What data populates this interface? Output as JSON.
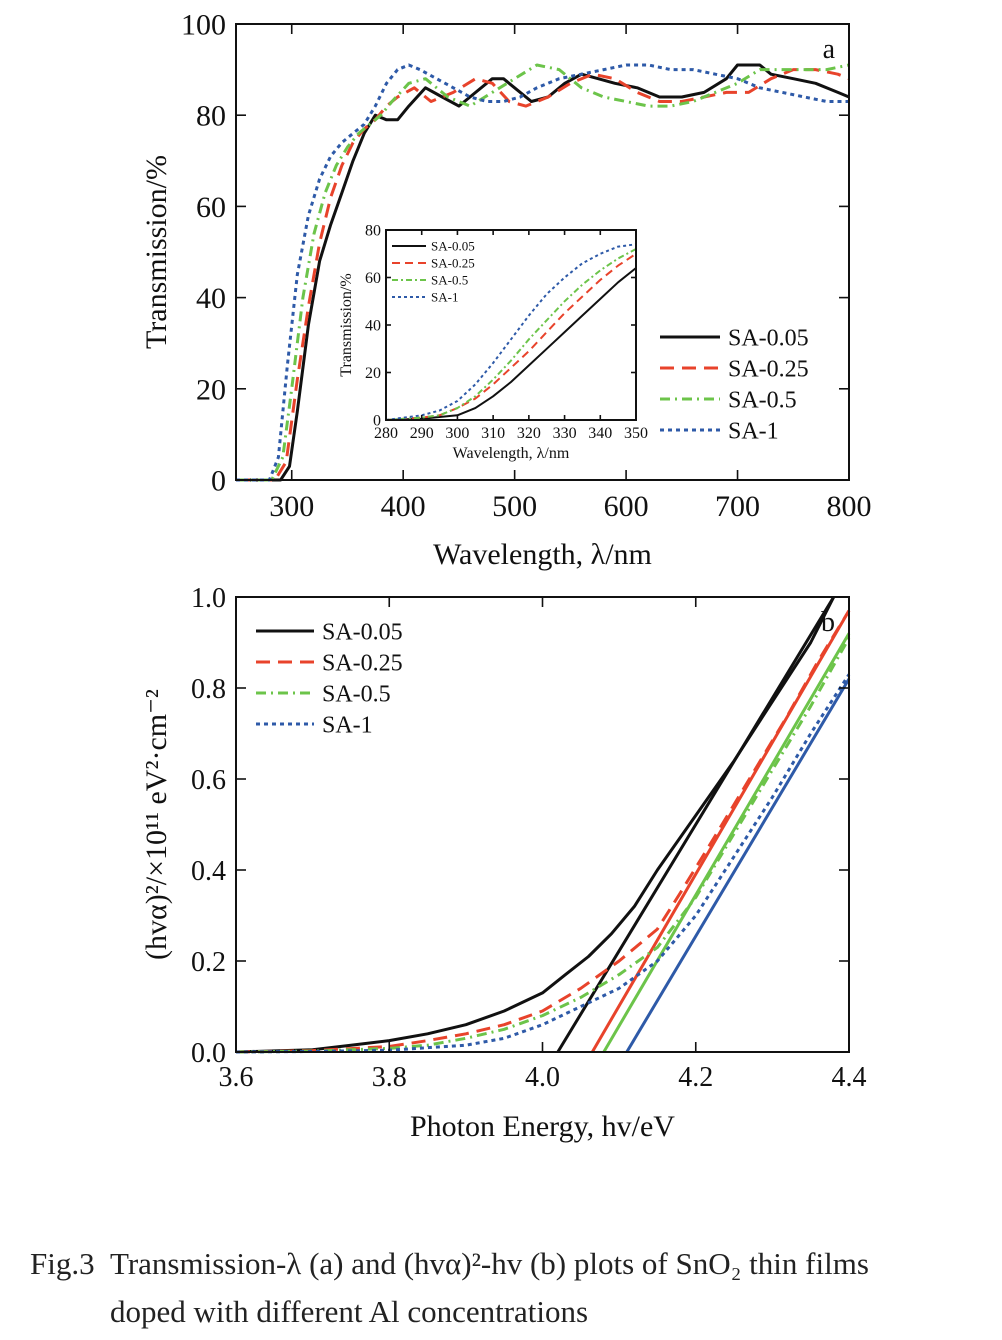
{
  "chart_data": [
    {
      "panel": "a",
      "type": "line",
      "xlabel": "Wavelength, λ/nm",
      "ylabel": "Transmission/%",
      "xlim": [
        250,
        800
      ],
      "ylim": [
        0,
        100
      ],
      "xticks": [
        300,
        400,
        500,
        600,
        700,
        800
      ],
      "yticks": [
        0,
        20,
        40,
        60,
        80,
        100
      ],
      "grid": false,
      "legend_position": "right",
      "series": [
        {
          "name": "SA-0.05",
          "color": "#111111",
          "dash": "solid",
          "x": [
            250,
            290,
            298,
            305,
            315,
            325,
            335,
            345,
            355,
            365,
            375,
            385,
            395,
            405,
            420,
            435,
            450,
            465,
            480,
            490,
            500,
            515,
            530,
            545,
            560,
            575,
            590,
            610,
            630,
            650,
            670,
            690,
            700,
            710,
            720,
            730,
            750,
            770,
            790,
            800
          ],
          "y": [
            0,
            0,
            3,
            15,
            34,
            48,
            56,
            63,
            70,
            76,
            80,
            79,
            79,
            82,
            86,
            84,
            82,
            85,
            88,
            88,
            86,
            83,
            84,
            87,
            89,
            88,
            87,
            86,
            84,
            84,
            85,
            88,
            91,
            91,
            91,
            89,
            88,
            87,
            85,
            84
          ]
        },
        {
          "name": "SA-0.25",
          "color": "#e8432b",
          "dash": "dashed",
          "x": [
            250,
            285,
            295,
            305,
            315,
            325,
            335,
            345,
            355,
            365,
            375,
            385,
            395,
            410,
            425,
            445,
            465,
            480,
            495,
            510,
            530,
            550,
            570,
            590,
            610,
            630,
            650,
            670,
            690,
            710,
            730,
            750,
            770,
            790,
            800
          ],
          "y": [
            0,
            0,
            4,
            22,
            38,
            52,
            62,
            69,
            74,
            77,
            79,
            82,
            84,
            86,
            83,
            85,
            88,
            87,
            83,
            82,
            84,
            87,
            89,
            88,
            85,
            83,
            83,
            84,
            85,
            85,
            88,
            90,
            90,
            89,
            88
          ]
        },
        {
          "name": "SA-0.5",
          "color": "#6cc44a",
          "dash": "dashdot",
          "x": [
            250,
            282,
            292,
            300,
            310,
            320,
            330,
            340,
            350,
            360,
            370,
            380,
            390,
            405,
            420,
            440,
            460,
            480,
            500,
            520,
            540,
            560,
            580,
            600,
            620,
            640,
            660,
            680,
            700,
            720,
            740,
            760,
            780,
            800
          ],
          "y": [
            0,
            0,
            5,
            20,
            40,
            54,
            63,
            69,
            73,
            76,
            78,
            80,
            83,
            87,
            88,
            84,
            82,
            85,
            88,
            91,
            90,
            86,
            84,
            83,
            82,
            82,
            83,
            85,
            87,
            90,
            90,
            90,
            90,
            91
          ]
        },
        {
          "name": "SA-1",
          "color": "#2e5aa8",
          "dash": "dotted",
          "x": [
            250,
            280,
            288,
            296,
            305,
            315,
            325,
            335,
            345,
            355,
            365,
            375,
            385,
            395,
            405,
            415,
            430,
            445,
            460,
            475,
            490,
            505,
            520,
            540,
            560,
            580,
            600,
            620,
            640,
            660,
            680,
            700,
            720,
            740,
            760,
            780,
            800
          ],
          "y": [
            0,
            0,
            5,
            25,
            45,
            58,
            66,
            71,
            74,
            76,
            78,
            82,
            87,
            90,
            91,
            90,
            88,
            86,
            84,
            83,
            83,
            84,
            86,
            88,
            89,
            90,
            91,
            91,
            90,
            90,
            89,
            88,
            86,
            85,
            84,
            83,
            83
          ]
        }
      ],
      "annotation": "a"
    },
    {
      "panel": "a-inset",
      "type": "line",
      "xlabel": "Wavelength, λ/nm",
      "ylabel": "Transmission/%",
      "xlim": [
        280,
        350
      ],
      "ylim": [
        0,
        80
      ],
      "xticks": [
        280,
        290,
        300,
        310,
        320,
        330,
        340,
        350
      ],
      "yticks": [
        0,
        20,
        40,
        60,
        80
      ],
      "legend_position": "top-left",
      "series": [
        {
          "name": "SA-0.05",
          "color": "#111111",
          "dash": "solid",
          "x": [
            280,
            290,
            300,
            305,
            310,
            315,
            320,
            325,
            330,
            335,
            340,
            345,
            350
          ],
          "y": [
            0,
            0.5,
            2,
            5,
            10,
            16,
            23,
            30,
            37,
            44,
            51,
            58,
            64
          ]
        },
        {
          "name": "SA-0.25",
          "color": "#e8432b",
          "dash": "dashed",
          "x": [
            280,
            290,
            295,
            300,
            305,
            310,
            315,
            320,
            325,
            330,
            335,
            340,
            345,
            350
          ],
          "y": [
            0,
            1,
            2,
            5,
            9,
            15,
            22,
            29,
            37,
            45,
            52,
            59,
            65,
            70
          ]
        },
        {
          "name": "SA-0.5",
          "color": "#6cc44a",
          "dash": "dashdot",
          "x": [
            280,
            290,
            295,
            300,
            305,
            310,
            315,
            320,
            325,
            330,
            335,
            340,
            345,
            350
          ],
          "y": [
            0,
            1,
            2,
            5,
            10,
            17,
            25,
            34,
            42,
            50,
            57,
            63,
            68,
            72
          ]
        },
        {
          "name": "SA-1",
          "color": "#2e5aa8",
          "dash": "dotted",
          "x": [
            280,
            285,
            290,
            295,
            300,
            305,
            310,
            315,
            320,
            325,
            330,
            335,
            340,
            345,
            350
          ],
          "y": [
            0,
            1,
            2,
            4,
            8,
            15,
            24,
            34,
            44,
            53,
            60,
            66,
            70,
            73,
            74
          ]
        }
      ]
    },
    {
      "panel": "b",
      "type": "line",
      "xlabel": "Photon Energy, hv/eV",
      "ylabel": "(hvα)²/×10¹¹ eV²·cm⁻²",
      "xlim": [
        3.6,
        4.4
      ],
      "ylim": [
        0,
        1.0
      ],
      "xticks": [
        "3.6",
        "3.8",
        "4.0",
        "4.2",
        "4.4"
      ],
      "yticks": [
        "0.0",
        "0.2",
        "0.4",
        "0.6",
        "0.8",
        "1.0"
      ],
      "grid": false,
      "legend_position": "top-left",
      "series": [
        {
          "name": "SA-0.05",
          "color": "#111111",
          "dash": "solid",
          "x": [
            3.6,
            3.7,
            3.75,
            3.8,
            3.85,
            3.9,
            3.95,
            4.0,
            4.03,
            4.06,
            4.09,
            4.12,
            4.15,
            4.2,
            4.25,
            4.3,
            4.35,
            4.38
          ],
          "y": [
            0.0,
            0.005,
            0.015,
            0.025,
            0.04,
            0.06,
            0.09,
            0.13,
            0.17,
            0.21,
            0.26,
            0.32,
            0.4,
            0.52,
            0.64,
            0.77,
            0.9,
            1.0
          ],
          "fit": {
            "x": [
              4.02,
              4.38
            ],
            "y": [
              0.0,
              1.0
            ]
          }
        },
        {
          "name": "SA-0.25",
          "color": "#e8432b",
          "dash": "dashed",
          "x": [
            3.6,
            3.7,
            3.8,
            3.85,
            3.9,
            3.95,
            4.0,
            4.05,
            4.1,
            4.15,
            4.18,
            4.22,
            4.27,
            4.32,
            4.36,
            4.4
          ],
          "y": [
            0.0,
            0.003,
            0.012,
            0.025,
            0.04,
            0.06,
            0.09,
            0.14,
            0.2,
            0.27,
            0.35,
            0.46,
            0.6,
            0.74,
            0.86,
            0.97
          ],
          "fit": {
            "x": [
              4.065,
              4.4
            ],
            "y": [
              0.0,
              0.97
            ]
          }
        },
        {
          "name": "SA-0.5",
          "color": "#6cc44a",
          "dash": "dashdot",
          "x": [
            3.6,
            3.7,
            3.8,
            3.85,
            3.9,
            3.95,
            4.0,
            4.05,
            4.1,
            4.15,
            4.2,
            4.25,
            4.3,
            4.35,
            4.4
          ],
          "y": [
            0.0,
            0.002,
            0.008,
            0.015,
            0.03,
            0.05,
            0.08,
            0.12,
            0.17,
            0.23,
            0.34,
            0.48,
            0.62,
            0.76,
            0.91
          ],
          "fit": {
            "x": [
              4.08,
              4.4
            ],
            "y": [
              0.0,
              0.92
            ]
          }
        },
        {
          "name": "SA-1",
          "color": "#2e5aa8",
          "dash": "dotted",
          "x": [
            3.6,
            3.7,
            3.8,
            3.9,
            3.95,
            4.0,
            4.05,
            4.1,
            4.15,
            4.2,
            4.25,
            4.3,
            4.35,
            4.4
          ],
          "y": [
            0.0,
            0.001,
            0.004,
            0.015,
            0.03,
            0.06,
            0.1,
            0.14,
            0.2,
            0.3,
            0.43,
            0.56,
            0.7,
            0.83
          ],
          "fit": {
            "x": [
              4.11,
              4.4
            ],
            "y": [
              0.0,
              0.82
            ]
          }
        }
      ],
      "annotation": "b"
    }
  ],
  "caption": {
    "fig_no": "Fig.3",
    "line1": "Transmission-λ (a) and (hvα)²-hv (b) plots of SnO₂ thin films",
    "line2": "doped with different Al concentrations"
  }
}
